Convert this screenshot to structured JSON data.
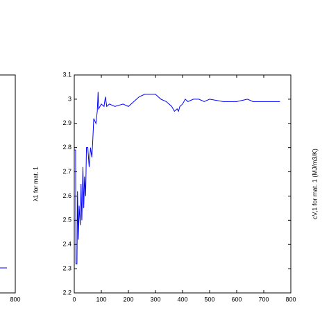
{
  "chart_data": [
    {
      "type": "line",
      "y_label": "λ1 for mat. 1",
      "y2_label": "cV,1 for mat. 1 (MJ/m3/K)",
      "xlim": [
        0,
        800
      ],
      "xticks": [
        0,
        100,
        200,
        300,
        400,
        500,
        600,
        700,
        800
      ],
      "ylim": [
        2.2,
        3.1
      ],
      "yticks": [
        2.2,
        2.3,
        2.4,
        2.5,
        2.6,
        2.7,
        2.8,
        2.9,
        3,
        3.1
      ],
      "series": [
        {
          "color": "#0000ff",
          "x": [
            0,
            5,
            6,
            10,
            12,
            15,
            18,
            22,
            25,
            28,
            32,
            35,
            38,
            42,
            45,
            50,
            55,
            60,
            65,
            68,
            72,
            80,
            85,
            88,
            90,
            95,
            100,
            110,
            115,
            120,
            130,
            150,
            180,
            200,
            220,
            240,
            260,
            280,
            300,
            320,
            340,
            360,
            370,
            380,
            385,
            390,
            400,
            410,
            420,
            440,
            460,
            480,
            500,
            550,
            600,
            640,
            660,
            700,
            730,
            760
          ],
          "values": [
            2.79,
            2.79,
            2.32,
            2.32,
            2.62,
            2.42,
            2.56,
            2.48,
            2.65,
            2.5,
            2.72,
            2.55,
            2.68,
            2.6,
            2.8,
            2.8,
            2.72,
            2.8,
            2.76,
            2.82,
            2.92,
            2.9,
            2.95,
            3.03,
            2.96,
            2.97,
            2.98,
            2.97,
            3.01,
            2.97,
            2.98,
            2.97,
            2.98,
            2.97,
            2.99,
            3.01,
            3.02,
            3.02,
            3.02,
            3,
            2.99,
            2.97,
            2.95,
            2.96,
            2.95,
            2.97,
            2.98,
            3,
            2.99,
            3,
            3,
            2.99,
            3,
            2.99,
            2.99,
            3,
            2.99,
            2.99,
            2.99,
            2.99
          ]
        }
      ]
    },
    {
      "type": "fragment",
      "xticks": [
        800
      ]
    }
  ]
}
